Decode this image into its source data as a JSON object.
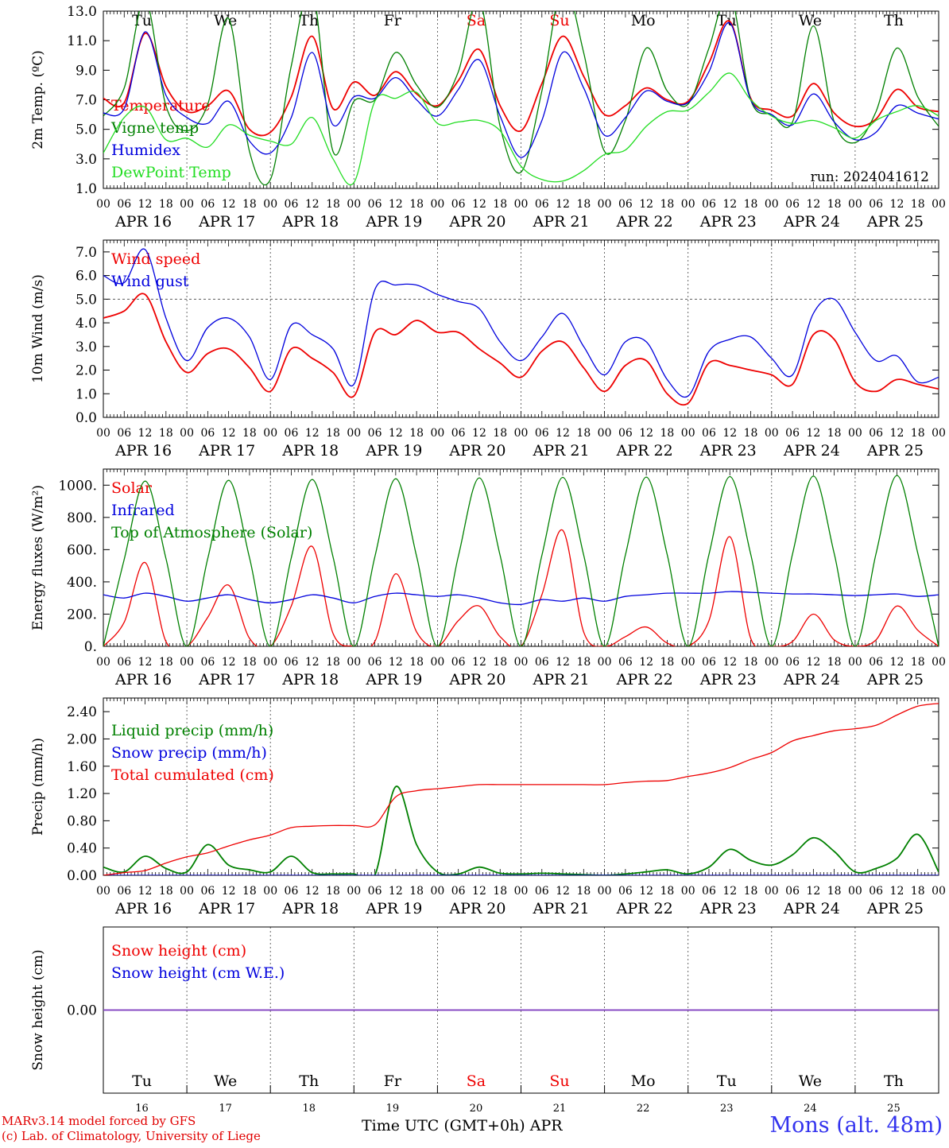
{
  "footer": {
    "credit_line1": "MARv3.14 model forced by GFS",
    "credit_line2": "(c) Lab. of Climatology, University of Liege",
    "xlabel": "Time UTC (GMT+0h)",
    "month": "APR",
    "station": "Mons (alt. 48m)"
  },
  "colors": {
    "red": "#ee0000",
    "green": "#008000",
    "blue": "#0000dd",
    "lightgreen": "#22dd22",
    "purple": "#7f3fbf",
    "weekend": "#ee0000"
  },
  "chart_data": [
    {
      "type": "line",
      "ylabel": "2m Temp. (ºC)",
      "ylim": [
        1.0,
        13.0
      ],
      "yticks": [
        1.0,
        3.0,
        5.0,
        7.0,
        9.0,
        11.0,
        13.0
      ],
      "ytick_labels": [
        "1.0",
        "3.0",
        "5.0",
        "7.0",
        "9.0",
        "11.0",
        "13.0"
      ],
      "x_hours": [
        0,
        6,
        12,
        18,
        24,
        30,
        36,
        42,
        48,
        54,
        60,
        66,
        72,
        78,
        84,
        90,
        96,
        102,
        108,
        114,
        120,
        126,
        132,
        138,
        144,
        150,
        156,
        162,
        168,
        174,
        180,
        186,
        192,
        198,
        204,
        210,
        216,
        222,
        228,
        234,
        240
      ],
      "x_unit": "hours from APR 16 00 UTC",
      "xtick_labels": [
        "00",
        "06",
        "12",
        "18"
      ],
      "day_labels": [
        "APR 16",
        "APR 17",
        "APR 18",
        "APR 19",
        "APR 20",
        "APR 21",
        "APR 22",
        "APR 23",
        "APR 24",
        "APR 25"
      ],
      "weekday_labels": [
        "Tu",
        "We",
        "Th",
        "Fr",
        "Sa",
        "Su",
        "Mo",
        "Tu",
        "We",
        "Th"
      ],
      "weekend_flags": [
        false,
        false,
        false,
        false,
        true,
        true,
        false,
        false,
        false,
        false
      ],
      "annotation": "run: 2024041612",
      "legend_placement": "top-left",
      "series": [
        {
          "name": "Temperature",
          "color": "red",
          "values": [
            7.1,
            6.8,
            11.5,
            7.9,
            6.2,
            6.6,
            7.6,
            5.0,
            4.8,
            7.2,
            11.3,
            6.4,
            8.2,
            7.3,
            8.9,
            7.4,
            6.6,
            8.3,
            10.4,
            6.6,
            4.9,
            8.1,
            11.3,
            8.6,
            6.0,
            6.6,
            7.8,
            7.0,
            6.9,
            9.5,
            12.3,
            7.1,
            6.3,
            5.9,
            8.1,
            6.1,
            5.2,
            5.7,
            7.7,
            6.5,
            6.2
          ]
        },
        {
          "name": "Vigne temp",
          "color": "green",
          "values": [
            5.9,
            7.8,
            13.8,
            6.6,
            4.9,
            6.7,
            12.5,
            3.5,
            1.6,
            9.3,
            14.5,
            3.5,
            6.9,
            7.0,
            10.2,
            8.0,
            6.5,
            8.9,
            13.8,
            5.2,
            2.1,
            7.6,
            14.8,
            10.2,
            3.5,
            5.6,
            10.5,
            7.6,
            6.7,
            10.5,
            14.2,
            7.0,
            6.0,
            5.5,
            12.0,
            5.5,
            4.1,
            6.2,
            10.5,
            7.2,
            5.2
          ]
        },
        {
          "name": "Humidex",
          "color": "blue",
          "values": [
            6.1,
            6.4,
            11.6,
            7.3,
            5.8,
            5.4,
            6.9,
            4.2,
            3.4,
            5.8,
            10.2,
            5.3,
            7.2,
            7.1,
            8.5,
            7.0,
            5.9,
            7.7,
            9.7,
            5.9,
            3.1,
            5.6,
            10.2,
            7.8,
            4.6,
            5.8,
            7.6,
            6.9,
            6.8,
            8.9,
            12.2,
            7.0,
            6.0,
            5.3,
            7.4,
            5.5,
            4.3,
            4.8,
            6.6,
            6.1,
            5.7
          ]
        },
        {
          "name": "DewPoint Temp",
          "color": "lightgreen",
          "values": [
            3.4,
            5.8,
            6.5,
            4.3,
            4.4,
            3.8,
            5.3,
            4.6,
            4.2,
            4.0,
            5.8,
            3.0,
            1.4,
            6.9,
            7.1,
            7.5,
            5.4,
            5.5,
            5.6,
            4.9,
            2.5,
            1.6,
            1.5,
            2.2,
            3.3,
            3.6,
            5.2,
            6.2,
            6.3,
            7.5,
            8.8,
            7.0,
            5.9,
            5.4,
            5.6,
            5.1,
            4.4,
            5.6,
            6.2,
            6.6,
            5.9
          ]
        }
      ]
    },
    {
      "type": "line",
      "ylabel": "10m Wind (m/s)",
      "ylim": [
        0.0,
        7.5
      ],
      "yticks": [
        0.0,
        1.0,
        2.0,
        3.0,
        4.0,
        5.0,
        6.0,
        7.0
      ],
      "ytick_labels": [
        "0.0",
        "1.0",
        "2.0",
        "3.0",
        "4.0",
        "5.0",
        "6.0",
        "7.0"
      ],
      "reference_line": 5.0,
      "x_hours": [
        0,
        6,
        12,
        18,
        24,
        30,
        36,
        42,
        48,
        54,
        60,
        66,
        72,
        78,
        84,
        90,
        96,
        102,
        108,
        114,
        120,
        126,
        132,
        138,
        144,
        150,
        156,
        162,
        168,
        174,
        180,
        186,
        192,
        198,
        204,
        210,
        216,
        222,
        228,
        234,
        240
      ],
      "xtick_labels": [
        "00",
        "06",
        "12",
        "18"
      ],
      "day_labels": [
        "APR 16",
        "APR 17",
        "APR 18",
        "APR 19",
        "APR 20",
        "APR 21",
        "APR 22",
        "APR 23",
        "APR 24",
        "APR 25"
      ],
      "legend_placement": "top-left",
      "series": [
        {
          "name": "Wind speed",
          "color": "red",
          "values": [
            4.2,
            4.5,
            5.2,
            3.2,
            1.9,
            2.7,
            2.9,
            2.1,
            1.1,
            2.9,
            2.5,
            1.9,
            0.9,
            3.6,
            3.5,
            4.1,
            3.6,
            3.6,
            2.9,
            2.3,
            1.7,
            2.8,
            3.2,
            2.1,
            1.1,
            2.2,
            2.4,
            1.0,
            0.6,
            2.3,
            2.2,
            2.0,
            1.8,
            1.4,
            3.5,
            3.3,
            1.5,
            1.1,
            1.6,
            1.4,
            1.2
          ]
        },
        {
          "name": "Wind gust",
          "color": "blue",
          "values": [
            6.0,
            5.7,
            7.1,
            4.2,
            2.4,
            3.8,
            4.2,
            3.4,
            1.6,
            3.9,
            3.5,
            2.9,
            1.4,
            5.4,
            5.6,
            5.6,
            5.2,
            4.9,
            4.6,
            3.2,
            2.4,
            3.4,
            4.4,
            3.0,
            1.8,
            3.2,
            3.2,
            1.6,
            0.9,
            2.8,
            3.3,
            3.4,
            2.5,
            1.8,
            4.4,
            5.0,
            3.6,
            2.4,
            2.6,
            1.5,
            1.7
          ]
        }
      ]
    },
    {
      "type": "line",
      "ylabel": "Energy fluxes (W/m²)",
      "ylim": [
        0,
        1100
      ],
      "yticks": [
        0,
        200,
        400,
        600,
        800,
        1000
      ],
      "ytick_labels": [
        "0.",
        "200.",
        "400.",
        "600.",
        "800.",
        "1000."
      ],
      "x_hours": [
        0,
        6,
        12,
        18,
        24,
        30,
        36,
        42,
        48,
        54,
        60,
        66,
        72,
        78,
        84,
        90,
        96,
        102,
        108,
        114,
        120,
        126,
        132,
        138,
        144,
        150,
        156,
        162,
        168,
        174,
        180,
        186,
        192,
        198,
        204,
        210,
        216,
        222,
        228,
        234,
        240
      ],
      "xtick_labels": [
        "00",
        "06",
        "12",
        "18"
      ],
      "day_labels": [
        "APR 16",
        "APR 17",
        "APR 18",
        "APR 19",
        "APR 20",
        "APR 21",
        "APR 22",
        "APR 23",
        "APR 24",
        "APR 25"
      ],
      "legend_placement": "top-left",
      "series": [
        {
          "name": "Solar",
          "color": "red",
          "values": [
            0,
            150,
            520,
            30,
            0,
            180,
            380,
            50,
            0,
            250,
            620,
            80,
            0,
            30,
            450,
            90,
            0,
            160,
            250,
            60,
            0,
            320,
            720,
            90,
            0,
            60,
            120,
            20,
            0,
            160,
            680,
            50,
            0,
            30,
            200,
            40,
            0,
            40,
            250,
            100,
            0
          ]
        },
        {
          "name": "Infrared",
          "color": "blue",
          "values": [
            320,
            300,
            330,
            310,
            280,
            300,
            320,
            290,
            270,
            290,
            320,
            300,
            270,
            310,
            330,
            320,
            310,
            320,
            300,
            270,
            260,
            290,
            280,
            300,
            280,
            310,
            320,
            330,
            330,
            330,
            340,
            335,
            330,
            325,
            325,
            320,
            315,
            320,
            325,
            310,
            320
          ]
        },
        {
          "name": "Top of Atmosphere (Solar)",
          "color": "green",
          "values": [
            0,
            540,
            1025,
            545,
            0,
            545,
            1030,
            550,
            0,
            550,
            1035,
            555,
            0,
            555,
            1040,
            560,
            0,
            560,
            1045,
            565,
            0,
            565,
            1048,
            568,
            0,
            568,
            1050,
            570,
            0,
            570,
            1053,
            572,
            0,
            572,
            1056,
            575,
            0,
            575,
            1060,
            578,
            0
          ]
        }
      ]
    },
    {
      "type": "line",
      "ylabel": "Precip (mm/h)",
      "ylim": [
        0.0,
        2.6
      ],
      "yticks": [
        0.0,
        0.4,
        0.8,
        1.2,
        1.6,
        2.0,
        2.4
      ],
      "ytick_labels": [
        "0.00",
        "0.40",
        "0.80",
        "1.20",
        "1.60",
        "2.00",
        "2.40"
      ],
      "x_hours": [
        0,
        6,
        12,
        18,
        24,
        30,
        36,
        42,
        48,
        54,
        60,
        66,
        72,
        78,
        84,
        90,
        96,
        102,
        108,
        114,
        120,
        126,
        132,
        138,
        144,
        150,
        156,
        162,
        168,
        174,
        180,
        186,
        192,
        198,
        204,
        210,
        216,
        222,
        228,
        234,
        240
      ],
      "xtick_labels": [
        "00",
        "06",
        "12",
        "18"
      ],
      "day_labels": [
        "APR 16",
        "APR 17",
        "APR 18",
        "APR 19",
        "APR 20",
        "APR 21",
        "APR 22",
        "APR 23",
        "APR 24",
        "APR 25"
      ],
      "legend_placement": "top-left",
      "series": [
        {
          "name": "Liquid precip (mm/h)",
          "color": "green",
          "values": [
            0.12,
            0.05,
            0.28,
            0.1,
            0.05,
            0.45,
            0.15,
            0.08,
            0.05,
            0.28,
            0.04,
            0.02,
            0.02,
            0.0,
            1.3,
            0.45,
            0.05,
            0.02,
            0.12,
            0.03,
            0.02,
            0.03,
            0.02,
            0.01,
            0.0,
            0.02,
            0.05,
            0.08,
            0.02,
            0.12,
            0.38,
            0.22,
            0.15,
            0.3,
            0.55,
            0.35,
            0.05,
            0.1,
            0.25,
            0.6,
            0.05
          ]
        },
        {
          "name": "Snow precip (mm/h)",
          "color": "blue",
          "values": [
            0,
            0,
            0,
            0,
            0,
            0,
            0,
            0,
            0,
            0,
            0,
            0,
            0,
            0,
            0,
            0,
            0,
            0,
            0,
            0,
            0,
            0,
            0,
            0,
            0,
            0,
            0,
            0,
            0,
            0,
            0,
            0,
            0,
            0,
            0,
            0,
            0,
            0,
            0,
            0,
            0
          ]
        },
        {
          "name": "Total cumulated (cm)",
          "color": "red",
          "values": [
            0.0,
            0.04,
            0.07,
            0.18,
            0.27,
            0.33,
            0.43,
            0.52,
            0.59,
            0.7,
            0.72,
            0.73,
            0.73,
            0.74,
            1.15,
            1.24,
            1.27,
            1.3,
            1.33,
            1.33,
            1.33,
            1.33,
            1.33,
            1.33,
            1.33,
            1.36,
            1.38,
            1.39,
            1.45,
            1.5,
            1.58,
            1.7,
            1.8,
            1.97,
            2.05,
            2.12,
            2.15,
            2.2,
            2.35,
            2.48,
            2.52
          ]
        }
      ]
    },
    {
      "type": "line",
      "ylabel": "Snow height (cm)",
      "ylim": [
        -1.0,
        1.0
      ],
      "yticks": [
        0.0
      ],
      "ytick_labels": [
        "0.00"
      ],
      "x_hours": [
        0,
        240
      ],
      "weekday_labels": [
        "Tu",
        "We",
        "Th",
        "Fr",
        "Sa",
        "Su",
        "Mo",
        "Tu",
        "We",
        "Th"
      ],
      "weekend_flags": [
        false,
        false,
        false,
        false,
        true,
        true,
        false,
        false,
        false,
        false
      ],
      "date_labels": [
        "16",
        "17",
        "18",
        "19",
        "20",
        "21",
        "22",
        "23",
        "24",
        "25"
      ],
      "legend_placement": "top-left",
      "series": [
        {
          "name": "Snow height (cm)",
          "color": "red",
          "values": [
            0.0,
            0.0
          ]
        },
        {
          "name": "Snow height (cm W.E.)",
          "color": "blue",
          "values": [
            0.0,
            0.0
          ]
        }
      ]
    }
  ]
}
